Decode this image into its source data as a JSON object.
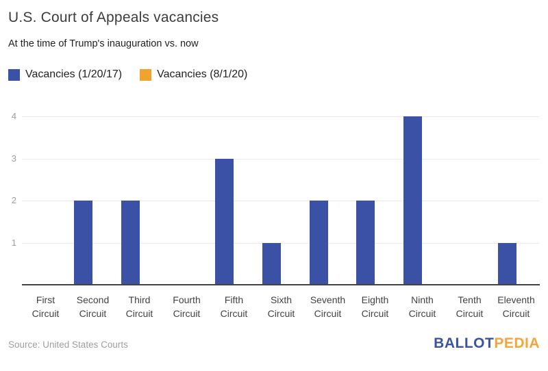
{
  "header": {
    "title": "U.S. Court of Appeals vacancies",
    "subtitle": "At the time of Trump's inauguration vs. now"
  },
  "legend": {
    "items": [
      {
        "label": "Vacancies (1/20/17)",
        "color": "#3B51A5"
      },
      {
        "label": "Vacancies (8/1/20)",
        "color": "#F0A32E"
      }
    ]
  },
  "chart_data": {
    "type": "bar",
    "title": "U.S. Court of Appeals vacancies",
    "subtitle": "At the time of Trump's inauguration vs. now",
    "categories": [
      "First Circuit",
      "Second Circuit",
      "Third Circuit",
      "Fourth Circuit",
      "Fifth Circuit",
      "Sixth Circuit",
      "Seventh Circuit",
      "Eighth Circuit",
      "Ninth Circuit",
      "Tenth Circuit",
      "Eleventh Circuit"
    ],
    "series": [
      {
        "name": "Vacancies (1/20/17)",
        "color": "#3B51A5",
        "values": [
          0,
          2,
          2,
          0,
          3,
          1,
          2,
          2,
          4,
          0,
          1
        ]
      },
      {
        "name": "Vacancies (8/1/20)",
        "color": "#F0A32E",
        "values": [
          0,
          0,
          0,
          0,
          0,
          0,
          0,
          0,
          0,
          0,
          0
        ]
      }
    ],
    "xlabel": "",
    "ylabel": "",
    "ylim": [
      0,
      4
    ],
    "yticks": [
      1,
      2,
      3,
      4
    ],
    "grid": true,
    "legend_position": "top-left",
    "colors": {
      "gridline": "#EBEBEB",
      "axis_line": "#424242",
      "y_tick_label": "#9E9E9E",
      "x_tick_label": "#424242"
    }
  },
  "footer": {
    "source": "Source: United States Courts",
    "logo": {
      "part1": "BALLOT",
      "part2": "PEDIA",
      "color1": "#3D52A1",
      "color2": "#F9A339"
    }
  }
}
